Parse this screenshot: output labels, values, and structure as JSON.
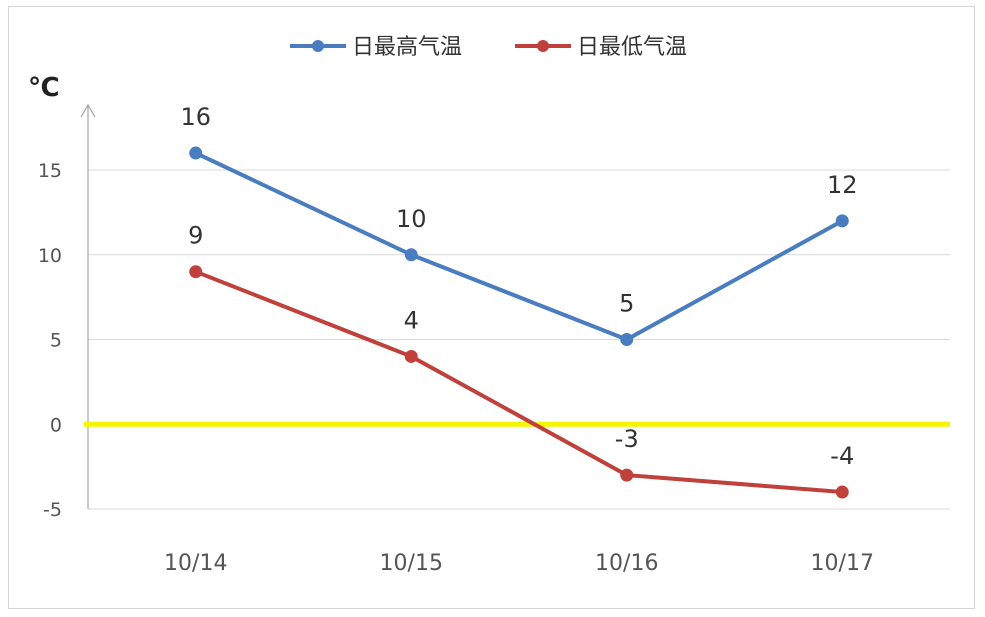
{
  "chart_data": {
    "type": "line",
    "title": "",
    "xlabel": "",
    "ylabel": "℃",
    "categories": [
      "10/14",
      "10/15",
      "10/16",
      "10/17"
    ],
    "ylim": [
      -5,
      15
    ],
    "yticks": [
      15,
      10,
      5,
      0,
      -5
    ],
    "grid": true,
    "legend_position": "top-center",
    "zero_line_color": "#f5f500",
    "series": [
      {
        "name": "日最高气温",
        "values": [
          16,
          10,
          5,
          12
        ],
        "color": "#4a7cc0"
      },
      {
        "name": "日最低气温",
        "values": [
          9,
          4,
          -3,
          -4
        ],
        "color": "#c0413c"
      }
    ]
  }
}
